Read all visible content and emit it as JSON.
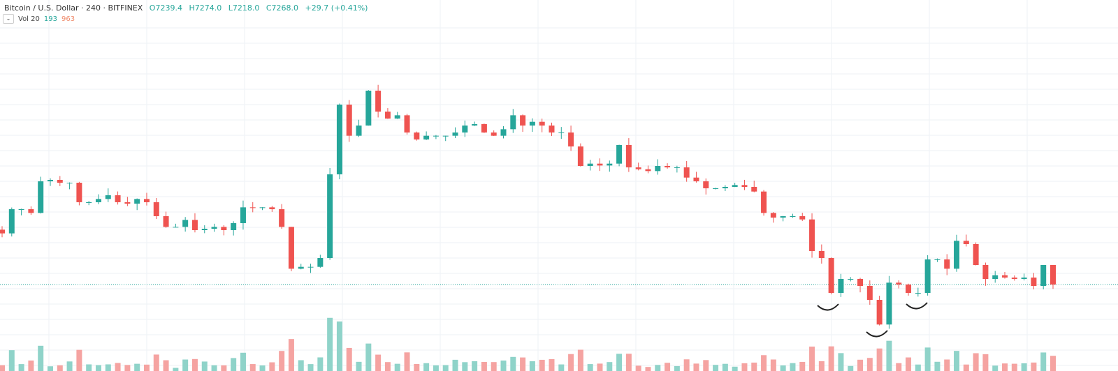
{
  "legend": {
    "symbol": "Bitcoin / U.S. Dollar · 240 · BITFINEX",
    "open": "O7239.4",
    "high": "H7274.0",
    "low": "L7218.0",
    "close": "C7268.0",
    "change": "+29.7 (+0.41%)"
  },
  "volume_legend": {
    "label": "Vol 20",
    "value1": "193",
    "value2": "963"
  },
  "colors": {
    "up": "#26a69a",
    "down": "#ef5350",
    "vol_up": "#8fd3c9",
    "vol_down": "#f5a3a1",
    "grid": "#eef2f6",
    "annotation": "#222222"
  },
  "chart_data": {
    "type": "candlestick",
    "symbol": "BTCUSD",
    "interval": "240",
    "grid": true,
    "closes": [
      7378,
      7430,
      7430,
      7422,
      7490,
      7493,
      7487,
      7487,
      7445,
      7445,
      7452,
      7460,
      7445,
      7442,
      7452,
      7445,
      7415,
      7392,
      7392,
      7407,
      7385,
      7388,
      7392,
      7385,
      7400,
      7434,
      7433,
      7434,
      7430,
      7392,
      7302,
      7306,
      7306,
      7325,
      7505,
      7655,
      7588,
      7610,
      7685,
      7640,
      7625,
      7632,
      7595,
      7580,
      7588,
      7588,
      7588,
      7595,
      7610,
      7613,
      7595,
      7588,
      7602,
      7632,
      7610,
      7618,
      7610,
      7595,
      7595,
      7565,
      7523,
      7528,
      7524,
      7528,
      7568,
      7520,
      7516,
      7512,
      7523,
      7520,
      7520,
      7498,
      7490,
      7475,
      7475,
      7478,
      7482,
      7478,
      7468,
      7422,
      7412,
      7415,
      7415,
      7408,
      7340,
      7325,
      7250,
      7280,
      7280,
      7265,
      7235,
      7182,
      7272,
      7268,
      7250,
      7250,
      7322,
      7322,
      7302,
      7362,
      7355,
      7310,
      7280,
      7288,
      7283,
      7280,
      7283,
      7265,
      7310,
      7268
    ],
    "last_price": 7268.0,
    "annotations": [
      "smile-arc",
      "smile-arc",
      "smile-arc"
    ]
  }
}
